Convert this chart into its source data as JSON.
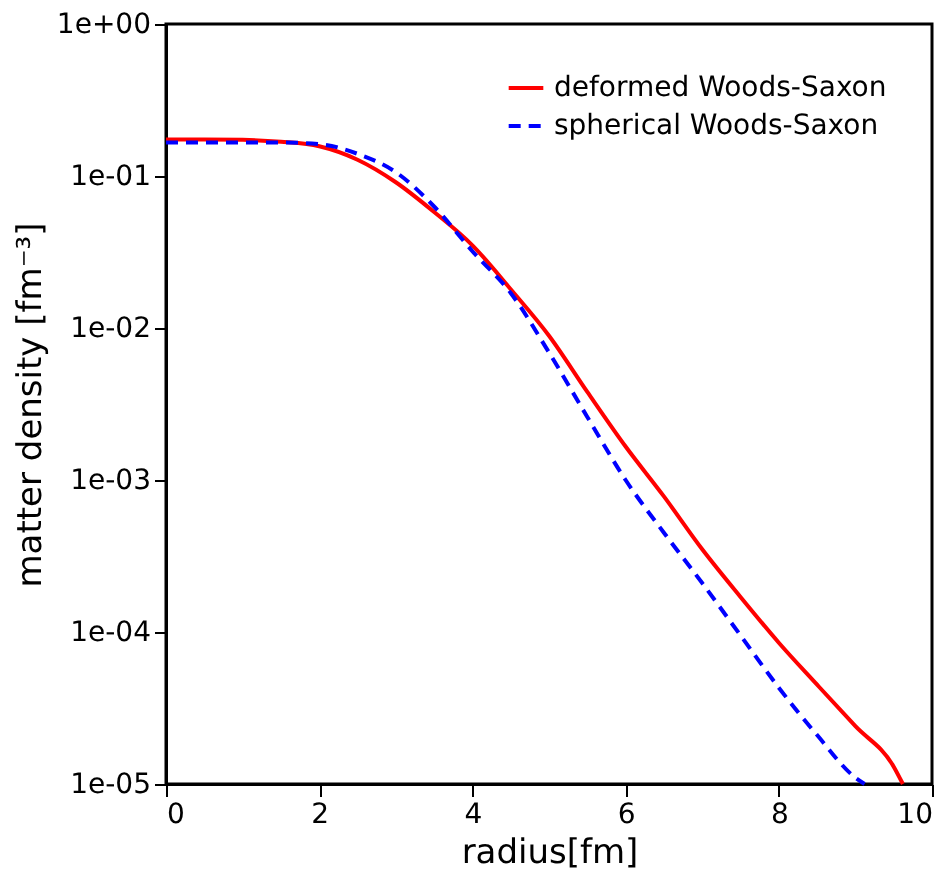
{
  "chart_data": {
    "type": "line",
    "xlabel": "radius[fm]",
    "ylabel": "matter density [fm⁻³]",
    "log": "y",
    "grid": false,
    "legend": "top right",
    "marker": "none",
    "xlim": [
      0,
      10
    ],
    "xticks": [
      0,
      2,
      4,
      6,
      8,
      10
    ],
    "ylim": [
      1e-05,
      1
    ],
    "yticks": [
      {
        "value": 1e-05,
        "label": "1e-05"
      },
      {
        "value": 0.0001,
        "label": "1e-04"
      },
      {
        "value": 0.001,
        "label": "1e-03"
      },
      {
        "value": 0.01,
        "label": "1e-02"
      },
      {
        "value": 0.1,
        "label": "1e-01"
      },
      {
        "value": 1,
        "label": "1e+00"
      }
    ],
    "series": [
      {
        "name": "deformed Woods-Saxon",
        "color": "#ff0000",
        "line_style": "solid",
        "x": [
          0,
          0.5,
          1,
          1.5,
          2,
          2.5,
          3,
          3.5,
          4,
          4.5,
          5,
          5.5,
          6,
          6.5,
          7,
          7.5,
          8,
          8.5,
          9,
          9.5,
          9.62
        ],
        "values": [
          0.174,
          0.174,
          0.173,
          0.168,
          0.157,
          0.128,
          0.091,
          0.058,
          0.035,
          0.018,
          0.0089,
          0.0038,
          0.00166,
          0.00078,
          0.00035,
          0.00017,
          8.5e-05,
          4.5e-05,
          2.4e-05,
          1.3e-05,
          1e-05
        ]
      },
      {
        "name": "spherical Woods-Saxon",
        "color": "#0000ff",
        "line_style": "dashed",
        "x": [
          0,
          0.5,
          1,
          1.5,
          2,
          2.5,
          3,
          3.5,
          4,
          4.5,
          5,
          5.5,
          6,
          6.5,
          7,
          7.5,
          8,
          8.5,
          9,
          9.12
        ],
        "values": [
          0.166,
          0.166,
          0.166,
          0.166,
          0.162,
          0.14,
          0.106,
          0.063,
          0.032,
          0.017,
          0.0069,
          0.0026,
          0.001,
          0.00045,
          0.00021,
          9.5e-05,
          4.3e-05,
          2.1e-05,
          1.1e-05,
          1e-05
        ]
      }
    ]
  }
}
